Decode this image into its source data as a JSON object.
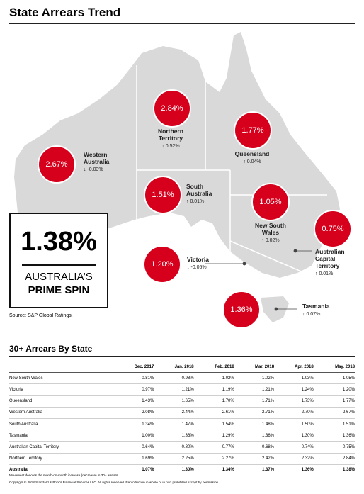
{
  "header": {
    "title": "State Arrears Trend"
  },
  "states": [
    {
      "name": "Western Australia",
      "value": "2.67%",
      "change": "↓ -0.03%"
    },
    {
      "name": "Northern Territory",
      "value": "2.84%",
      "change": "↑ 0.52%"
    },
    {
      "name": "Queensland",
      "value": "1.77%",
      "change": "↑ 0.04%"
    },
    {
      "name": "South Australia",
      "value": "1.51%",
      "change": "↑ 0.01%"
    },
    {
      "name": "New South Wales",
      "value": "1.05%",
      "change": "↑ 0.02%"
    },
    {
      "name": "Australian Capital Territory",
      "value": "0.75%",
      "change": "↑ 0.01%"
    },
    {
      "name": "Victoria",
      "value": "1.20%",
      "change": "↓ -0.05%"
    },
    {
      "name": "Tasmania",
      "value": "1.36%",
      "change": "↑ 0.07%"
    }
  ],
  "highlight": {
    "value": "1.38%",
    "line1": "AUSTRALIA’S",
    "line2": "PRIME SPIN"
  },
  "source": "Source: S&P Global Ratings.",
  "table": {
    "title": "30+ Arrears By State",
    "columns": [
      "Dec. 2017",
      "Jan. 2018",
      "Feb. 2018",
      "Mar. 2018",
      "Apr. 2018",
      "May. 2018"
    ],
    "rows": [
      [
        "New South Wales",
        "0.81%",
        "0.98%",
        "1.02%",
        "1.02%",
        "1.03%",
        "1.05%"
      ],
      [
        "Victoria",
        "0.97%",
        "1.21%",
        "1.19%",
        "1.21%",
        "1.24%",
        "1.20%"
      ],
      [
        "Queensland",
        "1.43%",
        "1.65%",
        "1.70%",
        "1.71%",
        "1.73%",
        "1.77%"
      ],
      [
        "Western Australia",
        "2.08%",
        "2.44%",
        "2.61%",
        "2.71%",
        "2.70%",
        "2.67%"
      ],
      [
        "South Australia",
        "1.34%",
        "1.47%",
        "1.54%",
        "1.48%",
        "1.50%",
        "1.51%"
      ],
      [
        "Tasmania",
        "1.00%",
        "1.36%",
        "1.29%",
        "1.36%",
        "1.30%",
        "1.36%"
      ],
      [
        "Australian Capital Territory",
        "0.64%",
        "0.80%",
        "0.77%",
        "0.68%",
        "0.74%",
        "0.75%"
      ],
      [
        "Northern Territory",
        "1.69%",
        "2.25%",
        "2.27%",
        "2.42%",
        "2.32%",
        "2.84%"
      ],
      [
        "Australia",
        "1.07%",
        "1.30%",
        "1.34%",
        "1.37%",
        "1.36%",
        "1.38%"
      ]
    ]
  },
  "footnotes": [
    "Movement denotes the month-on-month increase (decrease) in 30+ arrears",
    "Copyright © 2018 Standard & Poor’s Financial Services LLC. All rights reserved. Reproduction in whole or in part prohibited except by permission."
  ]
}
